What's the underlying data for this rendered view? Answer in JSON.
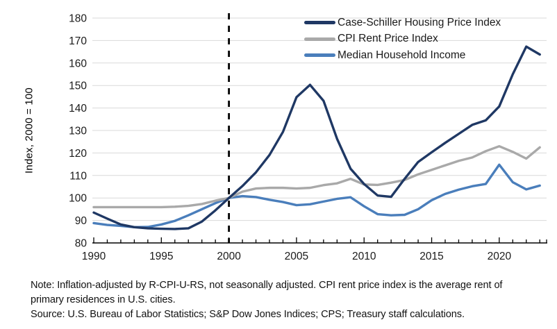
{
  "chart_data": {
    "type": "line",
    "title": "",
    "ylabel": "Index, 2000 = 100",
    "ylim": [
      80,
      180
    ],
    "ytick_step": 10,
    "xlim": [
      1990,
      2023.4
    ],
    "xticks": [
      1990,
      1995,
      2000,
      2005,
      2010,
      2015,
      2020
    ],
    "grid": "horizontal",
    "gridline_color": "#d9d9d9",
    "axis_color": "#000000",
    "dashed_vline_x": 2000,
    "legend_position": "top-right",
    "x": [
      1990,
      1991,
      1992,
      1993,
      1994,
      1995,
      1996,
      1997,
      1998,
      1999,
      2000,
      2001,
      2002,
      2003,
      2004,
      2005,
      2006,
      2007,
      2008,
      2009,
      2010,
      2011,
      2012,
      2013,
      2014,
      2015,
      2016,
      2017,
      2018,
      2019,
      2020,
      2021,
      2022,
      2023
    ],
    "series": [
      {
        "name": "Case-Schiller Housing Price Index",
        "color": "#1f3864",
        "values": [
          93.5,
          90.8,
          88.2,
          87.0,
          86.5,
          86.3,
          86.2,
          86.5,
          89.5,
          94.5,
          100,
          105.3,
          111.4,
          119.1,
          129.4,
          144.8,
          150.3,
          143.2,
          126.3,
          113.0,
          106.2,
          101.1,
          100.5,
          108.5,
          116.0,
          120.3,
          124.5,
          128.5,
          132.5,
          134.5,
          140.7,
          155.0,
          167.3,
          163.8
        ]
      },
      {
        "name": "CPI Rent Price Index",
        "color": "#a9a9a9",
        "values": [
          95.9,
          95.9,
          95.9,
          95.9,
          95.9,
          95.9,
          96.1,
          96.5,
          97.3,
          98.8,
          100,
          102.8,
          104.2,
          104.5,
          104.5,
          104.2,
          104.5,
          105.7,
          106.5,
          108.5,
          106.0,
          105.8,
          106.8,
          108.0,
          110.5,
          112.5,
          114.5,
          116.5,
          118.0,
          120.8,
          123.0,
          120.5,
          117.5,
          122.5
        ]
      },
      {
        "name": "Median Household Income",
        "color": "#4a7ebb",
        "values": [
          88.8,
          88.0,
          87.6,
          87.0,
          87.1,
          88.2,
          89.8,
          92.3,
          95.0,
          97.7,
          100,
          100.8,
          100.4,
          99.2,
          98.2,
          96.8,
          97.2,
          98.4,
          99.6,
          100.3,
          96.3,
          92.8,
          92.3,
          92.5,
          95.0,
          99.0,
          101.8,
          103.7,
          105.2,
          106.2,
          114.8,
          107.0,
          103.8,
          105.5
        ]
      }
    ]
  },
  "footnote": {
    "note": "Note: Inflation-adjusted by R-CPI-U-RS, not seasonally adjusted. CPI rent price index is the average rent of primary residences in U.S. cities.",
    "source": "Source: U.S. Bureau of Labor Statistics; S&P Dow Jones Indices; CPS; Treasury staff calculations."
  }
}
